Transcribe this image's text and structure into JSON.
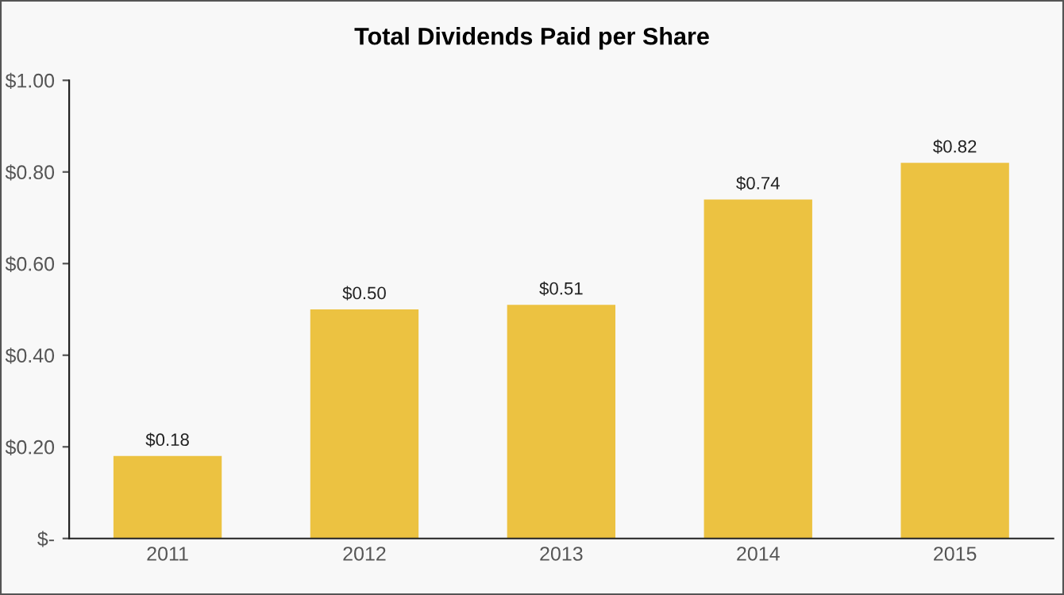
{
  "chart_data": {
    "type": "bar",
    "title": "Total Dividends Paid per Share",
    "categories": [
      "2011",
      "2012",
      "2013",
      "2014",
      "2015"
    ],
    "values": [
      0.18,
      0.5,
      0.51,
      0.74,
      0.82
    ],
    "value_labels": [
      "$0.18",
      "$0.50",
      "$0.51",
      "$0.74",
      "$0.82"
    ],
    "color": "#ecc241",
    "ylim": [
      0,
      1
    ],
    "yticks": [
      {
        "value": 0,
        "label": "$-"
      },
      {
        "value": 0.2,
        "label": "$0.20"
      },
      {
        "value": 0.4,
        "label": "$0.40"
      },
      {
        "value": 0.6,
        "label": "$0.60"
      },
      {
        "value": 0.8,
        "label": "$0.80"
      },
      {
        "value": 1.0,
        "label": "$1.00"
      }
    ],
    "grid": false,
    "legend": false
  }
}
